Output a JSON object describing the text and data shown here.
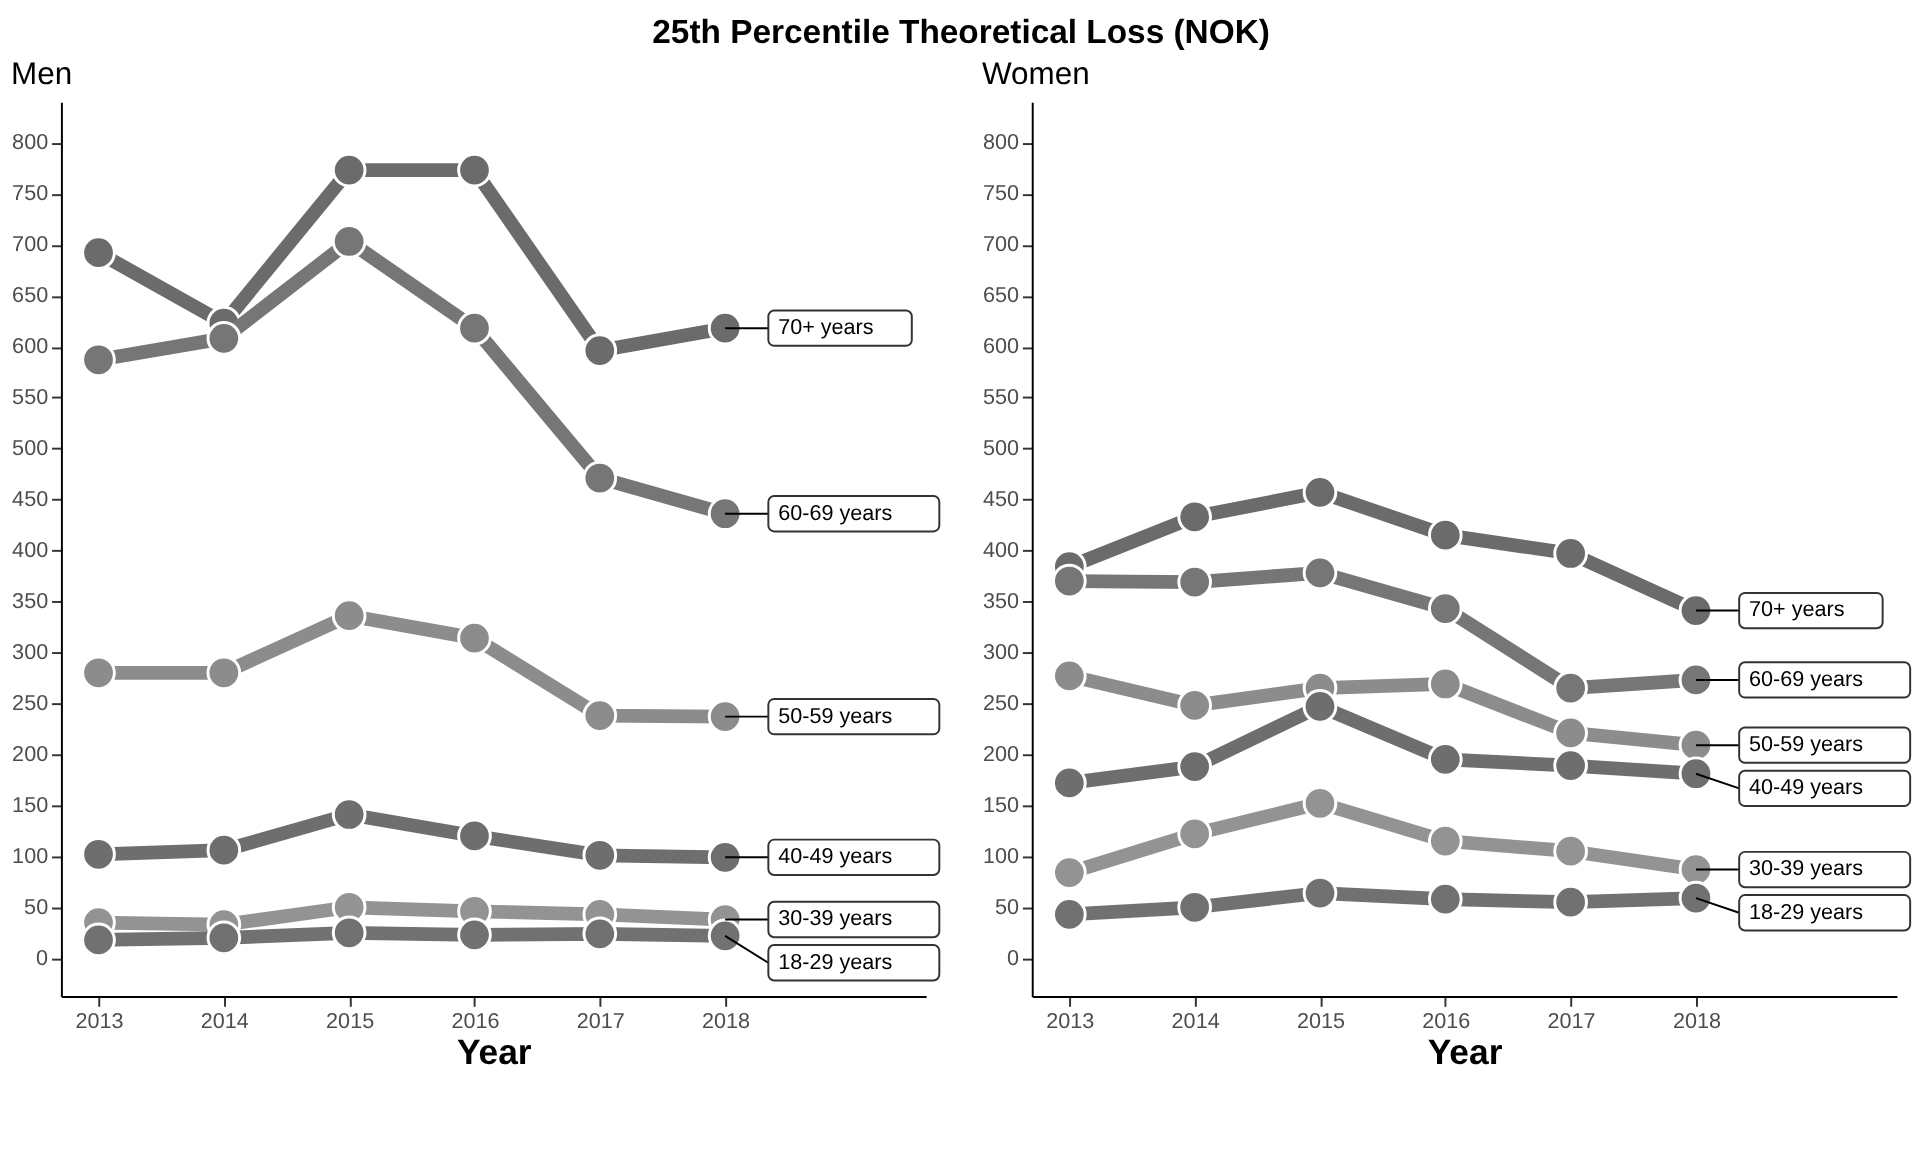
{
  "chart_data": [
    {
      "type": "line",
      "title": "25th Percentile Theoretical Loss (NOK)",
      "subtitle": "Men",
      "xlabel": "Year",
      "x": [
        2013,
        2014,
        2015,
        2016,
        2017,
        2018
      ],
      "xlim": [
        2012.7,
        2019.6
      ],
      "xticks": [
        2013,
        2014,
        2015,
        2016,
        2017,
        2018
      ],
      "ylim": [
        -37,
        840
      ],
      "yticks": [
        0,
        50,
        100,
        150,
        200,
        250,
        300,
        350,
        400,
        450,
        500,
        550,
        600,
        650,
        700,
        750,
        800
      ],
      "grid": false,
      "legend": false,
      "marker": "circle",
      "line_style": "solid",
      "series": [
        {
          "name": "70+ years",
          "color": "#6b6b6b",
          "values": [
            692,
            623,
            773,
            773,
            596,
            618
          ]
        },
        {
          "name": "60-69 years",
          "color": "#767676",
          "values": [
            587,
            608,
            703,
            618,
            471,
            436
          ]
        },
        {
          "name": "50-59 years",
          "color": "#8c8c8c",
          "values": [
            280,
            280,
            336,
            314,
            238,
            237
          ]
        },
        {
          "name": "40-49 years",
          "color": "#6e6e6e",
          "values": [
            102,
            106,
            141,
            120,
            101,
            99
          ]
        },
        {
          "name": "30-39 years",
          "color": "#939393",
          "values": [
            35,
            33,
            50,
            46,
            43,
            38
          ]
        },
        {
          "name": "18-29 years",
          "color": "#717171",
          "values": [
            18,
            20,
            25,
            23,
            24,
            22
          ]
        }
      ]
    },
    {
      "type": "line",
      "subtitle": "Women",
      "xlabel": "Year",
      "x": [
        2013,
        2014,
        2015,
        2016,
        2017,
        2018
      ],
      "xlim": [
        2012.7,
        2019.6
      ],
      "xticks": [
        2013,
        2014,
        2015,
        2016,
        2017,
        2018
      ],
      "ylim": [
        -37,
        840
      ],
      "yticks": [
        0,
        50,
        100,
        150,
        200,
        250,
        300,
        350,
        400,
        450,
        500,
        550,
        600,
        650,
        700,
        750,
        800
      ],
      "grid": false,
      "legend": false,
      "marker": "circle",
      "line_style": "solid",
      "series": [
        {
          "name": "70+ years",
          "color": "#6b6b6b",
          "values": [
            384,
            433,
            457,
            415,
            397,
            341
          ]
        },
        {
          "name": "60-69 years",
          "color": "#767676",
          "values": [
            370,
            369,
            378,
            343,
            265,
            273
          ]
        },
        {
          "name": "50-59 years",
          "color": "#8c8c8c",
          "values": [
            277,
            248,
            265,
            269,
            221,
            209
          ]
        },
        {
          "name": "40-49 years",
          "color": "#6e6e6e",
          "values": [
            172,
            188,
            247,
            195,
            189,
            181
          ]
        },
        {
          "name": "30-39 years",
          "color": "#939393",
          "values": [
            84,
            122,
            152,
            115,
            105,
            87
          ]
        },
        {
          "name": "18-29 years",
          "color": "#717171",
          "values": [
            43,
            50,
            64,
            58,
            55,
            59
          ]
        }
      ]
    }
  ]
}
